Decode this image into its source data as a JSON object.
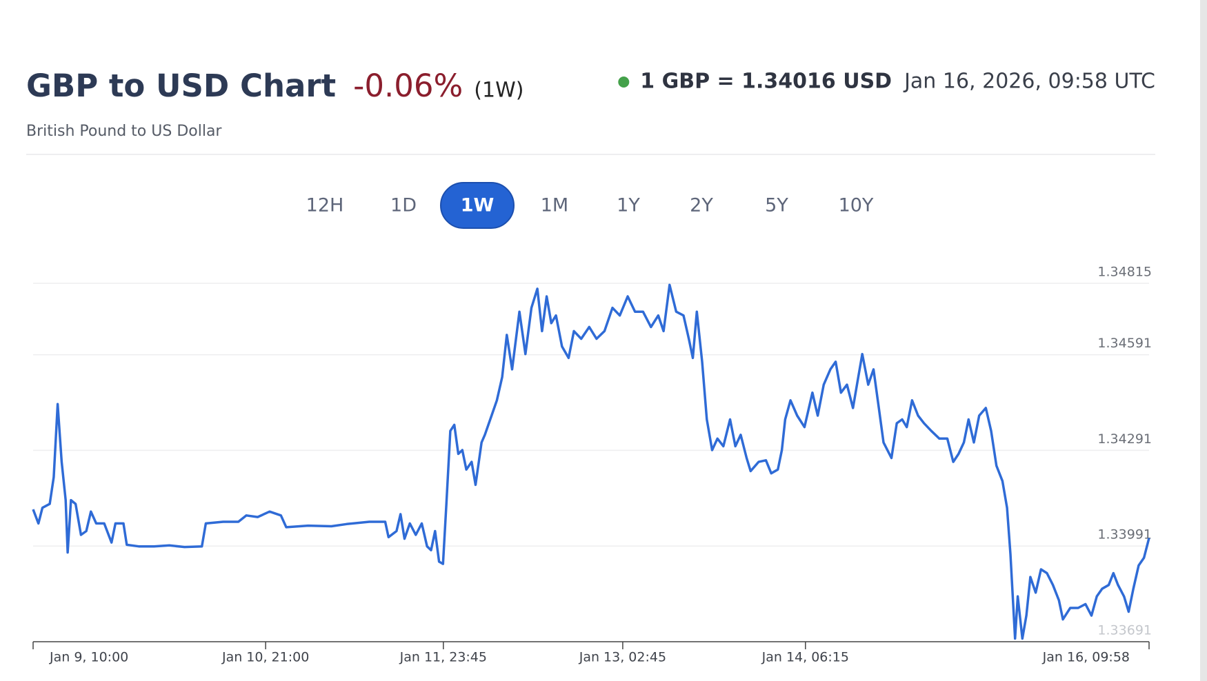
{
  "header": {
    "title": "GBP to USD Chart",
    "change": "-0.06%",
    "period": "(1W)",
    "subtitle": "British Pound to US Dollar",
    "rate": "1 GBP = 1.34016 USD",
    "timestamp": "Jan 16, 2026, 09:58 UTC"
  },
  "range_buttons": [
    "12H",
    "1D",
    "1W",
    "1M",
    "1Y",
    "2Y",
    "5Y",
    "10Y"
  ],
  "selected_range": 2,
  "chart_data": {
    "type": "line",
    "color": "#2f6bd6",
    "x": [
      10.0,
      10.8,
      11.4,
      12.5,
      13.1,
      13.7,
      14.3,
      14.9,
      15.2,
      15.7,
      16.4,
      17.2,
      18.0,
      18.7,
      19.5,
      20.7,
      21.8,
      22.4,
      23.6,
      24.1,
      25.9,
      28.2,
      30.5,
      32.8,
      35.4,
      36.0,
      38.6,
      40.9,
      42.1,
      43.8,
      45.6,
      47.3,
      48.1,
      51.4,
      54.9,
      57.2,
      60.6,
      63.0,
      63.5,
      64.7,
      65.3,
      65.9,
      66.7,
      67.6,
      68.5,
      69.3,
      69.9,
      70.5,
      71.1,
      71.7,
      72.2,
      72.8,
      73.4,
      74.0,
      74.6,
      75.2,
      76.0,
      76.6,
      77.5,
      78.0,
      79.0,
      79.8,
      80.6,
      81.3,
      82.1,
      83.2,
      84.1,
      85.0,
      85.9,
      86.6,
      87.3,
      88.0,
      88.7,
      89.6,
      90.6,
      91.4,
      92.5,
      93.7,
      94.8,
      96.0,
      97.2,
      98.3,
      99.5,
      100.6,
      101.8,
      103.0,
      104.1,
      104.9,
      105.8,
      106.8,
      107.9,
      108.7,
      109.3,
      109.9,
      110.7,
      111.4,
      112.2,
      113.0,
      113.9,
      114.9,
      115.7,
      116.5,
      117.4,
      118.0,
      119.2,
      120.3,
      121.1,
      122.1,
      122.7,
      123.2,
      124.0,
      125.0,
      126.1,
      127.3,
      128.1,
      129.0,
      130.0,
      130.8,
      131.6,
      132.5,
      133.4,
      134.2,
      134.8,
      135.7,
      136.5,
      137.3,
      138.0,
      139.2,
      140.0,
      140.8,
      141.5,
      142.3,
      143.2,
      144.1,
      145.2,
      146.4,
      147.6,
      148.5,
      149.3,
      150.1,
      150.8,
      151.6,
      152.4,
      153.4,
      154.2,
      155.0,
      155.9,
      156.6,
      157.1,
      157.8,
      158.2,
      158.9,
      159.5,
      160.1,
      160.9,
      161.7,
      162.6,
      163.5,
      164.4,
      165.0,
      166.1,
      167.3,
      168.4,
      169.3,
      170.1,
      170.9,
      171.9,
      172.6,
      173.3,
      174.2,
      174.9,
      175.6,
      176.4,
      177.2,
      177.97
    ],
    "values": [
      1.34106,
      1.34062,
      1.34111,
      1.34123,
      1.34207,
      1.34436,
      1.34255,
      1.34135,
      1.33971,
      1.34135,
      1.34123,
      1.34026,
      1.34038,
      1.34099,
      1.34062,
      1.34062,
      1.34002,
      1.34062,
      1.34062,
      1.33995,
      1.3399,
      1.3399,
      1.33993,
      1.33988,
      1.3399,
      1.34062,
      1.34067,
      1.34067,
      1.34087,
      1.34082,
      1.34099,
      1.34087,
      1.3405,
      1.34055,
      1.34053,
      1.3406,
      1.34067,
      1.34067,
      1.34019,
      1.34038,
      1.34091,
      1.34014,
      1.34062,
      1.34026,
      1.34062,
      1.3399,
      1.33978,
      1.34038,
      1.33942,
      1.33935,
      1.34123,
      1.34352,
      1.34371,
      1.3428,
      1.34292,
      1.34231,
      1.34255,
      1.34183,
      1.34316,
      1.3434,
      1.344,
      1.34448,
      1.34521,
      1.34653,
      1.34545,
      1.34726,
      1.34593,
      1.34738,
      1.34798,
      1.34665,
      1.34774,
      1.3469,
      1.34714,
      1.34617,
      1.34581,
      1.34665,
      1.34641,
      1.34678,
      1.34641,
      1.34665,
      1.34738,
      1.34714,
      1.34774,
      1.34726,
      1.34726,
      1.34678,
      1.34714,
      1.34665,
      1.3481,
      1.34726,
      1.34714,
      1.34641,
      1.34581,
      1.34726,
      1.34569,
      1.34388,
      1.34292,
      1.34328,
      1.34304,
      1.34388,
      1.34304,
      1.3434,
      1.34267,
      1.34226,
      1.34255,
      1.3426,
      1.34219,
      1.34231,
      1.34292,
      1.34388,
      1.34448,
      1.344,
      1.34364,
      1.34472,
      1.344,
      1.34497,
      1.34545,
      1.34569,
      1.34472,
      1.34497,
      1.34424,
      1.34521,
      1.34593,
      1.34497,
      1.34545,
      1.34424,
      1.34316,
      1.34267,
      1.34376,
      1.34388,
      1.34364,
      1.34448,
      1.344,
      1.34376,
      1.34352,
      1.34328,
      1.34328,
      1.34255,
      1.3428,
      1.34316,
      1.34388,
      1.34316,
      1.344,
      1.34424,
      1.34352,
      1.34243,
      1.34195,
      1.34111,
      1.33966,
      1.33701,
      1.33833,
      1.33701,
      1.33773,
      1.33894,
      1.33845,
      1.33918,
      1.33906,
      1.33869,
      1.33821,
      1.33761,
      1.33797,
      1.33797,
      1.33809,
      1.33773,
      1.33833,
      1.33857,
      1.33869,
      1.33906,
      1.33869,
      1.33833,
      1.33785,
      1.33857,
      1.3393,
      1.33954,
      1.34016
    ],
    "xlim": [
      10,
      177.97
    ],
    "xticks": [
      {
        "value": 10,
        "label": "Jan 9, 10:00"
      },
      {
        "value": 45,
        "label": "Jan 10, 21:00"
      },
      {
        "value": 71.75,
        "label": "Jan 11, 23:45"
      },
      {
        "value": 98.75,
        "label": "Jan 13, 02:45"
      },
      {
        "value": 126.25,
        "label": "Jan 14, 06:15"
      },
      {
        "value": 177.97,
        "label": "Jan 16, 09:58"
      }
    ],
    "ylim": [
      1.33691,
      1.34815
    ],
    "yticks": [
      1.33691,
      1.33991,
      1.34291,
      1.34591,
      1.34815
    ],
    "grid": true
  }
}
